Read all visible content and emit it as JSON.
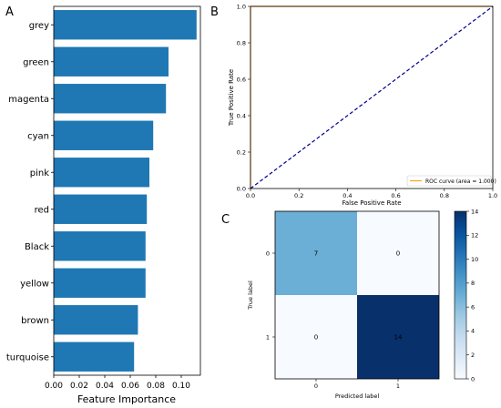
{
  "panel_letters": [
    "A",
    "B",
    "C"
  ],
  "chart_data": [
    {
      "type": "bar",
      "orientation": "horizontal",
      "categories": [
        "grey",
        "green",
        "magenta",
        "cyan",
        "pink",
        "red",
        "Black",
        "yellow",
        "brown",
        "turquoise"
      ],
      "values": [
        0.112,
        0.09,
        0.088,
        0.078,
        0.075,
        0.073,
        0.072,
        0.072,
        0.066,
        0.063
      ],
      "xlabel": "Feature Importance",
      "ylabel": "",
      "xlim": [
        0,
        0.115
      ],
      "xticks": [
        0.0,
        0.02,
        0.04,
        0.06,
        0.08,
        0.1
      ],
      "xtick_labels": [
        "0.00",
        "0.02",
        "0.04",
        "0.06",
        "0.08",
        "0.10"
      ],
      "bar_color": "#1f77b4",
      "grid": false
    },
    {
      "type": "line",
      "xlabel": "False Positive Rate",
      "ylabel": "True Positive Rate",
      "xlim": [
        0,
        1
      ],
      "ylim": [
        0,
        1
      ],
      "xticks": [
        0.0,
        0.2,
        0.4,
        0.6,
        0.8,
        1.0
      ],
      "xtick_labels": [
        "0.0",
        "0.2",
        "0.4",
        "0.6",
        "0.8",
        "1.0"
      ],
      "yticks": [
        0.0,
        0.2,
        0.4,
        0.6,
        0.8,
        1.0
      ],
      "ytick_labels": [
        "0.0",
        "0.2",
        "0.4",
        "0.6",
        "0.8",
        "1.0"
      ],
      "series": [
        {
          "name": "ROC curve (area = 1.000)",
          "x": [
            0,
            0,
            1
          ],
          "y": [
            0,
            1,
            1
          ],
          "color": "#ff9f1a",
          "style": "solid"
        },
        {
          "x": [
            0,
            1
          ],
          "y": [
            0,
            1
          ],
          "color": "#00008b",
          "style": "dashed"
        }
      ],
      "legend_position": "bottom-right",
      "grid": false
    },
    {
      "type": "heatmap",
      "x_categories": [
        "0",
        "1"
      ],
      "y_categories": [
        "0",
        "1"
      ],
      "values": [
        [
          7,
          0
        ],
        [
          0,
          14
        ]
      ],
      "xlabel": "Predicted label",
      "ylabel": "True label",
      "colormap": "Blues",
      "colorbar_range": [
        0,
        14
      ],
      "colorbar_ticks": [
        0,
        2,
        4,
        6,
        8,
        10,
        12,
        14
      ]
    }
  ]
}
